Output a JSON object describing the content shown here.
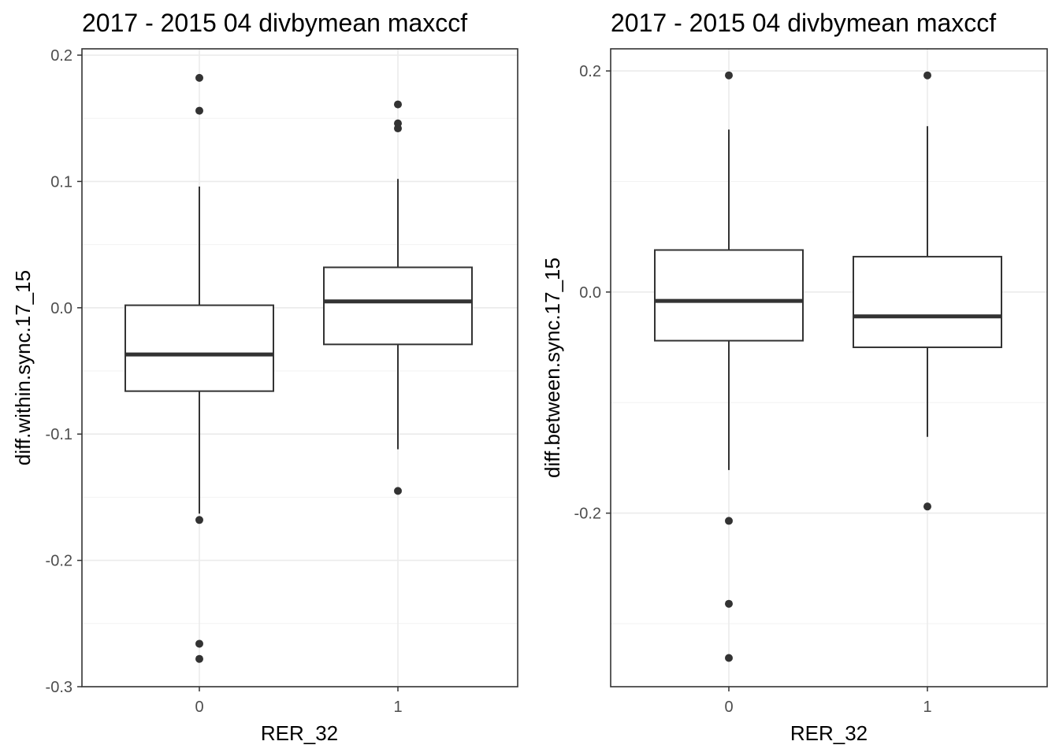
{
  "chart_data": [
    {
      "type": "box",
      "title": "2017 - 2015 04 divbymean maxccf",
      "xlabel": "RER_32",
      "ylabel": "diff.within.sync.17_15",
      "categories": [
        "0",
        "1"
      ],
      "ylim": [
        -0.3,
        0.205
      ],
      "yticks": [
        -0.3,
        -0.2,
        -0.1,
        0.0,
        0.1,
        0.2
      ],
      "ytick_labels": [
        "-0.3",
        "-0.2",
        "-0.1",
        "0.0",
        "0.1",
        "0.2"
      ],
      "grid": true,
      "boxes": [
        {
          "category": "0",
          "whisker_low": -0.163,
          "q1": -0.066,
          "median": -0.037,
          "q3": 0.002,
          "whisker_high": 0.096,
          "outliers": [
            0.182,
            0.156,
            -0.168,
            -0.266,
            -0.278
          ]
        },
        {
          "category": "1",
          "whisker_low": -0.112,
          "q1": -0.029,
          "median": 0.005,
          "q3": 0.032,
          "whisker_high": 0.102,
          "outliers": [
            0.161,
            0.146,
            0.142,
            -0.145
          ]
        }
      ]
    },
    {
      "type": "box",
      "title": "2017 - 2015 04 divbymean maxccf",
      "xlabel": "RER_32",
      "ylabel": "diff.between.sync.17_15",
      "categories": [
        "0",
        "1"
      ],
      "ylim": [
        -0.357,
        0.22
      ],
      "yticks": [
        -0.2,
        0.0,
        0.2
      ],
      "ytick_labels": [
        "-0.2",
        "0.0",
        "0.2"
      ],
      "grid": true,
      "boxes": [
        {
          "category": "0",
          "whisker_low": -0.161,
          "q1": -0.044,
          "median": -0.008,
          "q3": 0.038,
          "whisker_high": 0.147,
          "outliers": [
            0.196,
            -0.207,
            -0.282,
            -0.331
          ]
        },
        {
          "category": "1",
          "whisker_low": -0.131,
          "q1": -0.05,
          "median": -0.022,
          "q3": 0.032,
          "whisker_high": 0.15,
          "outliers": [
            0.196,
            -0.194
          ]
        }
      ]
    }
  ]
}
